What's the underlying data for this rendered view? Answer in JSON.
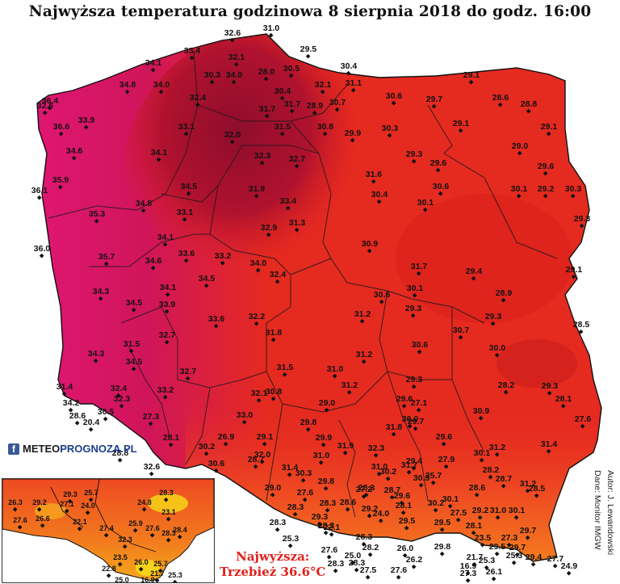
{
  "title": "Najwyższa temperatura godzinowa 8 sierpnia 2018 do godz. 16:00",
  "logo": {
    "text_a": "METEO",
    "text_b": "PROGNOZA",
    "text_c": ".PL"
  },
  "credits": {
    "author": "Autor: J. Lewandowski",
    "data": "Dane: Monitor IMGW"
  },
  "highest": {
    "line1": "Najwyższa:",
    "line2": "Trzebież 36.6°C"
  },
  "colors": {
    "hot_magenta": "#e0166a",
    "dark_crimson": "#9c1030",
    "red": "#e52a20",
    "orange_red": "#f04c22",
    "orange": "#f47c1e",
    "yellow": "#f3c318",
    "text_highlight": "#e0201a"
  },
  "map_labels": [
    "32.6",
    "31.0",
    "29.5",
    "33.4",
    "32.1",
    "30.5",
    "30.4",
    "34.1",
    "30.3",
    "34.0",
    "28.0",
    "29.1",
    "34.8",
    "34.0",
    "32.4",
    "30.4",
    "32.1",
    "31.1",
    "32.6",
    "36.4",
    "31.7",
    "31.7",
    "28.9",
    "30.7",
    "30.6",
    "29.7",
    "28.6",
    "28.8",
    "36.6",
    "33.9",
    "33.1",
    "31.5",
    "30.8",
    "29.9",
    "30.3",
    "29.1",
    "29.1",
    "34.6",
    "32.0",
    "34.1",
    "32.3",
    "32.7",
    "29.3",
    "29.0",
    "29.6",
    "29.6",
    "35.9",
    "34.5",
    "31.6",
    "31.9",
    "33.4",
    "36.1",
    "30.4",
    "30.6",
    "30.1",
    "29.2",
    "30.3",
    "33.1",
    "34.8",
    "35.3",
    "31.3",
    "30.1",
    "29.3",
    "32.9",
    "36.0",
    "34.1",
    "30.9",
    "35.7",
    "33.6",
    "33.2",
    "34.6",
    "34.0",
    "29.4",
    "31.7",
    "29.1",
    "34.1",
    "34.5",
    "30.6",
    "32.4",
    "30.1",
    "28.9",
    "34.3",
    "34.5",
    "33.9",
    "29.3",
    "33.6",
    "32.2",
    "31.2",
    "29.3",
    "28.5",
    "32.7",
    "31.8",
    "30.7",
    "34.3",
    "31.5",
    "30.6",
    "30.0",
    "34.5",
    "31.2",
    "31.0",
    "31.5",
    "28.2",
    "32.7",
    "29.3",
    "29.3",
    "31.2",
    "32.4",
    "33.2",
    "29.6",
    "27.1",
    "31.4",
    "30.8",
    "29.0",
    "28.1",
    "34.2",
    "32.3",
    "32.1",
    "30.0",
    "29.7",
    "27.6",
    "30.5",
    "28.6",
    "27.3",
    "20.4",
    "29.8",
    "33.0",
    "31.8",
    "30.9",
    "29.1",
    "29.9",
    "29.6",
    "31.4",
    "28.1",
    "26.9",
    "31.9",
    "32.3",
    "28.8",
    "30.2",
    "32.0",
    "31.2",
    "27.9",
    "30.1",
    "29.4",
    "31.0",
    "28.7",
    "31.7",
    "28.2",
    "32.6",
    "30.6",
    "30.3",
    "30.2",
    "31.4",
    "31.0",
    "25.7",
    "29.8",
    "28.3",
    "30.3",
    "28.6",
    "28.5",
    "28.7",
    "27.6",
    "29.0",
    "27.2",
    "28.7",
    "30.1",
    "31.2",
    "28.3",
    "28.3",
    "28.6",
    "29.6",
    "28.1",
    "30.2",
    "29.2",
    "31.0",
    "30.1",
    "29.2",
    "29.3",
    "28.3",
    "24.0",
    "28.3",
    "27.5",
    "29.5",
    "29.5",
    "28.1",
    "29.7",
    "22.1",
    "23.5",
    "25.3",
    "28.3",
    "28.2",
    "27.6",
    "26.0",
    "29.8",
    "27.3",
    "29.7",
    "29.5",
    "29.4",
    "25.0",
    "26.2",
    "28.3",
    "25.3",
    "27.7",
    "28.3",
    "27.5",
    "27.6",
    "16.9",
    "21.7",
    "25.3",
    "26.1",
    "27.3",
    "24.9",
    "25.7",
    "27.7"
  ],
  "inset_labels": [
    "29.3",
    "25.7",
    "28.3",
    "26.3",
    "29.2",
    "27.1",
    "24.0",
    "24.8",
    "23.1",
    "27.6",
    "26.6",
    "22.1",
    "27.4",
    "25.9",
    "27.6",
    "28.3",
    "28.4",
    "32.3",
    "23.5",
    "26.0",
    "25.7",
    "22.8",
    "21.7",
    "25.0",
    "16.9",
    "25.3"
  ]
}
